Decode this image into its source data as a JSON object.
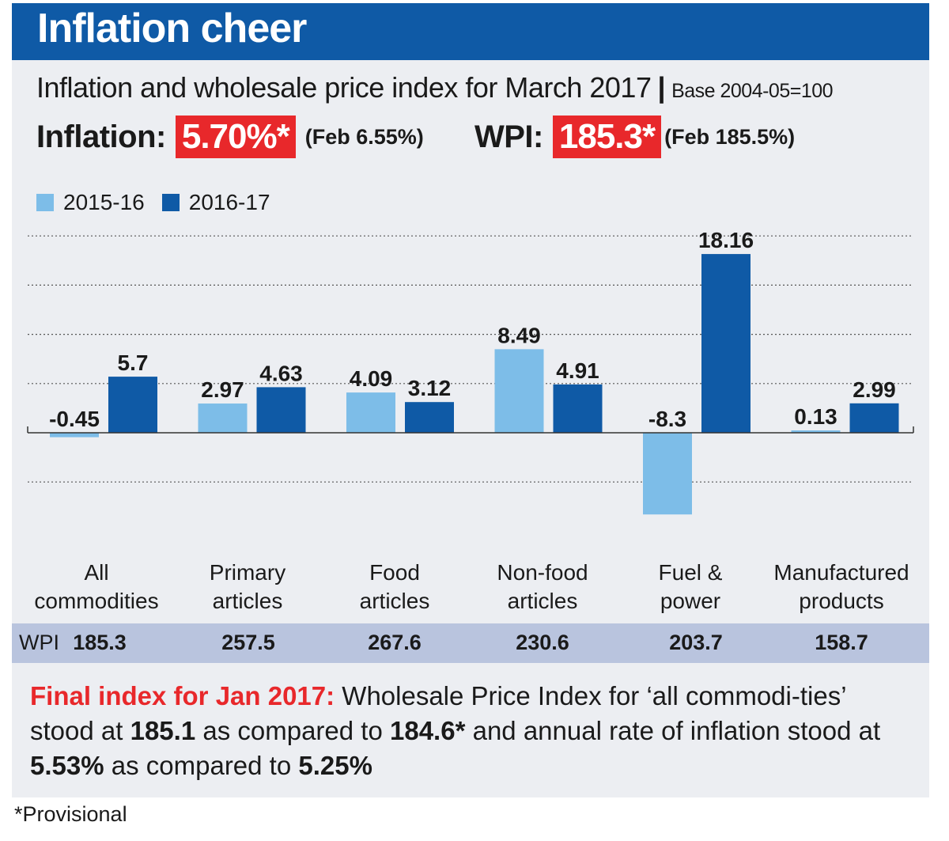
{
  "header": {
    "title": "Inflation cheer",
    "subtitle": "Inflation and wholesale price index for March 2017",
    "separator": "|",
    "base": "Base 2004-05=100"
  },
  "kpis": {
    "inflation_label": "Inflation:",
    "inflation_value": "5.70%*",
    "inflation_note": "(Feb 6.55%)",
    "wpi_label": "WPI:",
    "wpi_value": "185.3*",
    "wpi_note": "(Feb 185.5%)"
  },
  "colors": {
    "series_2015_16": "#7dbde8",
    "series_2016_17": "#0f5aa6",
    "highlight": "#e8282b",
    "title_bar": "#0f5aa6",
    "wpi_row": "#b9c4de"
  },
  "chart_data": {
    "type": "bar",
    "categories": [
      "All commodities",
      "Primary articles",
      "Food articles",
      "Non-food articles",
      "Fuel & power",
      "Manufactured products"
    ],
    "category_lines": [
      [
        "All",
        "commodities"
      ],
      [
        "Primary",
        "articles"
      ],
      [
        "Food",
        "articles"
      ],
      [
        "Non-food",
        "articles"
      ],
      [
        "Fuel &",
        "power"
      ],
      [
        "Manufactured",
        "products"
      ]
    ],
    "series": [
      {
        "name": "2015-16",
        "values": [
          -0.45,
          2.97,
          4.09,
          8.49,
          -8.3,
          0.13
        ],
        "labels": [
          "-0.45",
          "2.97",
          "4.09",
          "8.49",
          "-8.3",
          "0.13"
        ]
      },
      {
        "name": "2016-17",
        "values": [
          5.7,
          4.63,
          3.12,
          4.91,
          18.16,
          2.99
        ],
        "labels": [
          "5.7",
          "4.63",
          "3.12",
          "4.91",
          "18.16",
          "2.99"
        ]
      }
    ],
    "ylim": [
      -8.3,
      20
    ],
    "grid": true,
    "legend": "top-left"
  },
  "wpi_row": {
    "label": "WPI",
    "values": [
      "185.3",
      "257.5",
      "267.6",
      "230.6",
      "203.7",
      "158.7"
    ]
  },
  "final_note": {
    "heading": "Final index for Jan 2017:",
    "t1": " Wholesale Price Index for ‘all commodi-ties’ stood at ",
    "v1": "185.1",
    "t2": " as compared to ",
    "v2": "184.6*",
    "t3": " and annual rate of inflation stood at ",
    "v3": "5.53%",
    "t4": " as compared to ",
    "v4": "5.25%"
  },
  "footnote": "*Provisional"
}
